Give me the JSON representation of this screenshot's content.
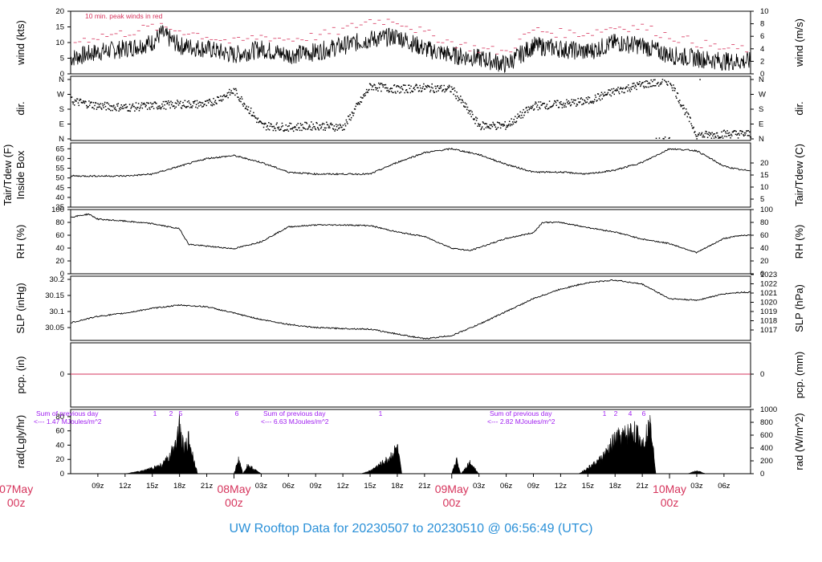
{
  "footer": {
    "title": "UW Rooftop Data for 20230507  to  20230510 @ 06:56:49  (UTC)"
  },
  "annotations": {
    "peak_winds": "10 min. peak winds in red",
    "sum_prev_day": "Sum of previous day",
    "rad_sums": [
      "<--- 1.47 MJoules/m^2",
      "<--- 6.63 MJoules/m^2",
      "<--- 2.82 MJoules/m^2"
    ],
    "day1_markers": [
      "1",
      "2",
      "5",
      "6"
    ],
    "day2_markers": [
      "1"
    ],
    "day3_markers": [
      "1",
      "2",
      "4",
      "6"
    ]
  },
  "colors": {
    "peak_wind": "#d6345c",
    "precip_zero_line": "#d6345c",
    "day_labels": "#d6345c",
    "rad_annotations": "#a020f0",
    "footer": "#2a90d8",
    "data": "#000000"
  },
  "chart_data": {
    "type": "line",
    "time_axis": {
      "start": "2023-05-07 06:00Z",
      "end": "2023-05-10 06:56Z",
      "tick_labels": [
        "09z",
        "12z",
        "15z",
        "18z",
        "21z",
        "03z",
        "06z",
        "09z",
        "12z",
        "15z",
        "18z",
        "21z",
        "03z",
        "06z",
        "09z",
        "12z",
        "15z",
        "18z",
        "21z",
        "03z",
        "06z"
      ],
      "day_labels": [
        {
          "date": "07May",
          "time": "00z"
        },
        {
          "date": "08May",
          "time": "00z"
        },
        {
          "date": "09May",
          "time": "00z"
        },
        {
          "date": "10May",
          "time": "00z"
        }
      ]
    },
    "panels": [
      {
        "id": "wind",
        "ylabel_left": "wind (kts)",
        "ylabel_right": "wind (m/s)",
        "ylim": [
          0,
          20
        ],
        "yticks": [
          0,
          5,
          10,
          15,
          20
        ],
        "right_ticks": [
          "0",
          "2",
          "4",
          "6",
          "8",
          "10"
        ],
        "series": [
          {
            "name": "",
            "points": [
              [
                6,
                5
              ],
              [
                9,
                7
              ],
              [
                12,
                8
              ],
              [
                15,
                10
              ],
              [
                16,
                13
              ],
              [
                18,
                9
              ],
              [
                21,
                8
              ],
              [
                24,
                6
              ],
              [
                27,
                8
              ],
              [
                30,
                6
              ],
              [
                33,
                7
              ],
              [
                36,
                9
              ],
              [
                39,
                11
              ],
              [
                42,
                12
              ],
              [
                45,
                8
              ],
              [
                48,
                6
              ],
              [
                51,
                5
              ],
              [
                54,
                3
              ],
              [
                57,
                9
              ],
              [
                60,
                8
              ],
              [
                63,
                7
              ],
              [
                66,
                10
              ],
              [
                69,
                9
              ],
              [
                72,
                6
              ],
              [
                75,
                5
              ],
              [
                78,
                4
              ]
            ]
          },
          {
            "name": "10 min. peak winds in red",
            "points": [
              [
                6,
                10
              ],
              [
                9,
                12
              ],
              [
                12,
                13
              ],
              [
                15,
                15
              ],
              [
                18,
                14
              ],
              [
                21,
                12
              ],
              [
                24,
                10
              ],
              [
                27,
                12
              ],
              [
                30,
                11
              ],
              [
                33,
                12
              ],
              [
                36,
                14
              ],
              [
                39,
                17
              ],
              [
                42,
                17
              ],
              [
                45,
                13
              ],
              [
                48,
                10
              ],
              [
                51,
                8
              ],
              [
                54,
                7
              ],
              [
                57,
                14
              ],
              [
                60,
                13
              ],
              [
                63,
                13
              ],
              [
                66,
                15
              ],
              [
                69,
                15
              ],
              [
                72,
                12
              ],
              [
                75,
                10
              ],
              [
                78,
                8
              ]
            ]
          }
        ]
      },
      {
        "id": "dir",
        "ylabel_left": "dir.",
        "ylabel_right": "dir.",
        "yticks_labels": [
          "N",
          "E",
          "S",
          "W",
          "N"
        ],
        "series": [
          {
            "name": "",
            "points": [
              [
                6,
                230
              ],
              [
                9,
                200
              ],
              [
                12,
                190
              ],
              [
                15,
                200
              ],
              [
                18,
                210
              ],
              [
                21,
                210
              ],
              [
                24,
                290
              ],
              [
                27,
                80
              ],
              [
                30,
                70
              ],
              [
                33,
                80
              ],
              [
                36,
                70
              ],
              [
                39,
                320
              ],
              [
                42,
                300
              ],
              [
                45,
                310
              ],
              [
                48,
                300
              ],
              [
                51,
                80
              ],
              [
                54,
                80
              ],
              [
                57,
                200
              ],
              [
                60,
                210
              ],
              [
                63,
                230
              ],
              [
                66,
                290
              ],
              [
                69,
                330
              ],
              [
                72,
                350
              ],
              [
                75,
                20
              ],
              [
                78,
                30
              ]
            ]
          }
        ]
      },
      {
        "id": "temp",
        "ylabel_left": "Tair/Tdew (F)",
        "ylabel_left2": "Inside Box",
        "ylabel_right": "Tair/Tdew (C)",
        "ylim": [
          35,
          68
        ],
        "yticks": [
          35,
          40,
          45,
          50,
          55,
          60,
          65
        ],
        "right_ticks": [
          "5",
          "10",
          "15",
          "20"
        ],
        "series": [
          {
            "name": "",
            "points": [
              [
                6,
                51
              ],
              [
                9,
                51
              ],
              [
                12,
                51
              ],
              [
                15,
                52
              ],
              [
                18,
                56
              ],
              [
                21,
                60
              ],
              [
                24,
                61.5
              ],
              [
                27,
                58
              ],
              [
                30,
                53
              ],
              [
                33,
                52
              ],
              [
                36,
                52
              ],
              [
                39,
                52
              ],
              [
                42,
                58
              ],
              [
                45,
                63
              ],
              [
                48,
                65
              ],
              [
                51,
                62
              ],
              [
                54,
                57
              ],
              [
                57,
                53
              ],
              [
                60,
                53
              ],
              [
                63,
                52
              ],
              [
                66,
                54
              ],
              [
                69,
                58
              ],
              [
                72,
                65
              ],
              [
                75,
                64
              ],
              [
                78,
                56
              ],
              [
                80,
                54
              ]
            ]
          }
        ]
      },
      {
        "id": "rh",
        "ylabel_left": "RH (%)",
        "ylabel_right": "RH (%)",
        "ylim": [
          0,
          100
        ],
        "yticks": [
          0,
          20,
          40,
          60,
          80,
          100
        ],
        "right_ticks": [
          "0",
          "20",
          "40",
          "60",
          "80",
          "100"
        ],
        "series": [
          {
            "name": "",
            "points": [
              [
                6,
                88
              ],
              [
                8,
                93
              ],
              [
                9,
                85
              ],
              [
                12,
                82
              ],
              [
                15,
                78
              ],
              [
                18,
                70
              ],
              [
                19,
                46
              ],
              [
                21,
                43
              ],
              [
                24,
                39
              ],
              [
                27,
                50
              ],
              [
                30,
                73
              ],
              [
                33,
                76
              ],
              [
                36,
                76
              ],
              [
                39,
                75
              ],
              [
                42,
                65
              ],
              [
                45,
                58
              ],
              [
                48,
                40
              ],
              [
                50,
                36
              ],
              [
                54,
                55
              ],
              [
                57,
                64
              ],
              [
                58,
                80
              ],
              [
                60,
                80
              ],
              [
                63,
                72
              ],
              [
                66,
                65
              ],
              [
                69,
                54
              ],
              [
                72,
                47
              ],
              [
                75,
                33
              ],
              [
                78,
                55
              ],
              [
                80,
                60
              ]
            ]
          }
        ]
      },
      {
        "id": "slp",
        "ylabel_left": "SLP (inHg)",
        "ylabel_right": "SLP (hPa)",
        "ylim": [
          30.01,
          30.21
        ],
        "yticks": [
          30.05,
          30.1,
          30.15,
          30.2
        ],
        "right_ticks": [
          "1017",
          "1018",
          "1019",
          "1020",
          "1021",
          "1022",
          "1023"
        ],
        "series": [
          {
            "name": "",
            "points": [
              [
                6,
                30.065
              ],
              [
                9,
                30.085
              ],
              [
                12,
                30.095
              ],
              [
                15,
                30.11
              ],
              [
                18,
                30.12
              ],
              [
                21,
                30.115
              ],
              [
                24,
                30.095
              ],
              [
                27,
                30.075
              ],
              [
                30,
                30.06
              ],
              [
                33,
                30.05
              ],
              [
                36,
                30.047
              ],
              [
                39,
                30.045
              ],
              [
                42,
                30.03
              ],
              [
                45,
                30.015
              ],
              [
                48,
                30.025
              ],
              [
                51,
                30.06
              ],
              [
                54,
                30.1
              ],
              [
                57,
                30.14
              ],
              [
                60,
                30.17
              ],
              [
                63,
                30.19
              ],
              [
                66,
                30.198
              ],
              [
                69,
                30.185
              ],
              [
                72,
                30.14
              ],
              [
                75,
                30.135
              ],
              [
                78,
                30.155
              ],
              [
                80,
                30.16
              ]
            ]
          }
        ]
      },
      {
        "id": "pcp",
        "ylabel_left": "pcp. (in)",
        "ylabel_right": "pcp. (mm)",
        "yticks": [
          0
        ],
        "right_ticks": [
          "0"
        ],
        "series": [
          {
            "name": "",
            "points": [
              [
                6,
                0
              ],
              [
                80,
                0
              ]
            ]
          }
        ]
      },
      {
        "id": "rad",
        "ylabel_left": "rad(Lgly/hr)",
        "ylabel_right": "rad (W/m^2)",
        "ylim": [
          0,
          90
        ],
        "yticks": [
          0,
          20,
          40,
          60,
          80
        ],
        "right_ticks": [
          "0",
          "200",
          "400",
          "600",
          "800",
          "1000"
        ],
        "series": [
          {
            "name": "",
            "points": [
              [
                12,
                0
              ],
              [
                14,
                5
              ],
              [
                16,
                15
              ],
              [
                17,
                30
              ],
              [
                18,
                80
              ],
              [
                18.5,
                40
              ],
              [
                19,
                60
              ],
              [
                20,
                0
              ],
              [
                24,
                0
              ],
              [
                24.5,
                25
              ],
              [
                25,
                0
              ],
              [
                25.5,
                15
              ],
              [
                26,
                10
              ],
              [
                27,
                0
              ],
              [
                38,
                0
              ],
              [
                39,
                5
              ],
              [
                40,
                15
              ],
              [
                41,
                25
              ],
              [
                42,
                45
              ],
              [
                42.5,
                0
              ],
              [
                45,
                0
              ],
              [
                48,
                0
              ],
              [
                48.5,
                25
              ],
              [
                49,
                0
              ],
              [
                50,
                20
              ],
              [
                51,
                0
              ],
              [
                62,
                0
              ],
              [
                63,
                10
              ],
              [
                64,
                20
              ],
              [
                65,
                35
              ],
              [
                66,
                60
              ],
              [
                67,
                65
              ],
              [
                68,
                75
              ],
              [
                69,
                55
              ],
              [
                70,
                85
              ],
              [
                70.5,
                0
              ],
              [
                74,
                0
              ],
              [
                75,
                5
              ],
              [
                76,
                0
              ]
            ]
          }
        ]
      }
    ]
  }
}
